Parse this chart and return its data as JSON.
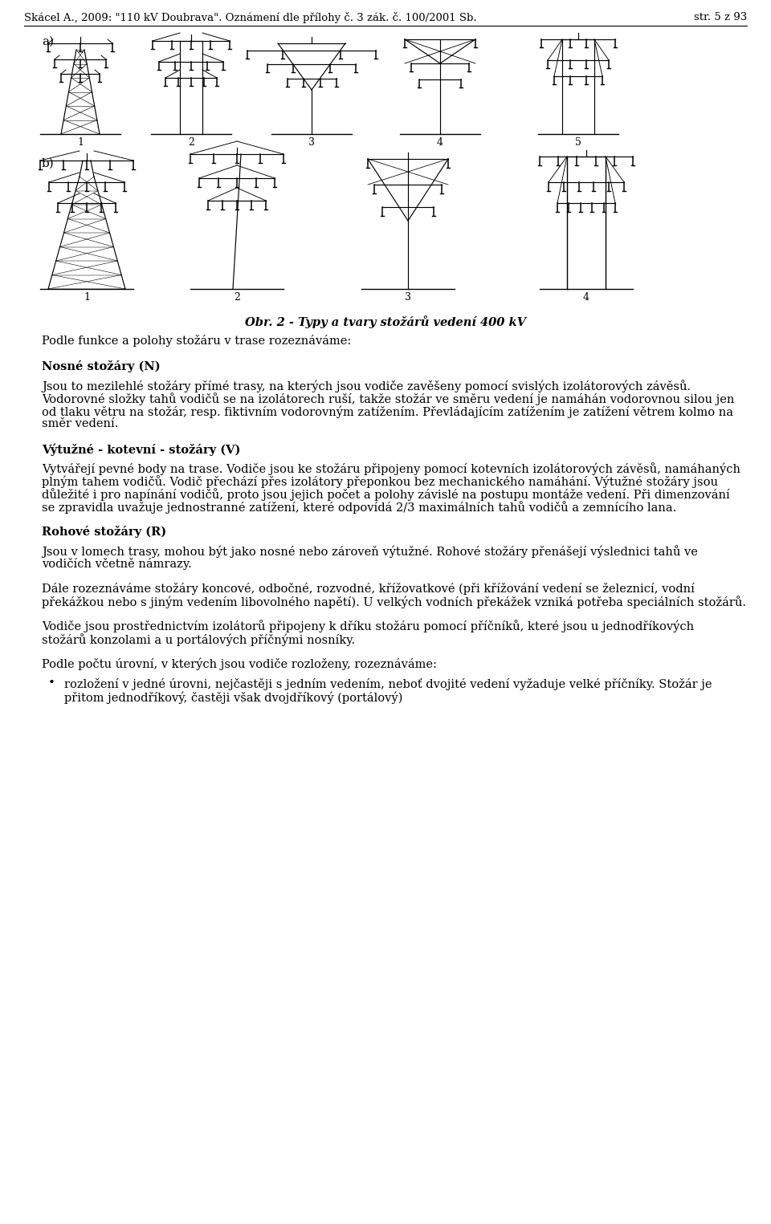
{
  "header_left": "Skácel A., 2009: \"110 kV Doubrava\". Oznámení dle přílohy č. 3 zák. č. 100/2001 Sb.",
  "header_right": "str. 5 z 93",
  "caption": "Obr. 2 - Typy a tvary stožárů vedení 400 kV",
  "intro_text": "Podle funkce a polohy stožáru v trase rozeznáváme:",
  "section1_title": "Nosné stožáry (N)",
  "section1_text": "Jsou to mezilehlé stožáry přímé trasy, na kterých jsou vodiče zavěšeny pomocí svislých izolátorových závěsů. Vodorovné složky tahů vodičů se na izolátorech ruší, takže stožár ve směru vedení je namáhán vodorovnou silou jen od tlaku větru na stožár, resp. fiktivním vodorovným zatížením. Převládajícím zatížením je zatížení větrem kolmo na směr vedení.",
  "section2_title": "Výtužné - kotevní - stožáry (V)",
  "section2_text": "Vytvářejí pevné body na trase. Vodiče jsou ke stožáru připojeny pomocí kotevních izolátorových závěsů, namáhaných plným tahem vodičů. Vodič přechází přes izolátory přeponkou bez mechanického namáhání. Výtužné stožáry jsou důležité i pro napínání vodičů, proto jsou jejich počet a polohy závislé na postupu montáže vedení. Při dimenzování se zpravidla uvažuje jednostranné zatížení, které odpovídá 2/3 maximálních tahů vodičů a zemnícího lana.",
  "section3_title": "Rohové stožáry (R)",
  "section3_text": "Jsou v lomech trasy, mohou být jako nosné nebo zároveň výtužné. Rohové stožáry přenášejí výslednici tahů ve vodičích včetně námrazy.",
  "para4_text": "Dále rozeznáváme stožáry koncové, odbočné, rozvodné, křížovatkové (při křížování vedení se železnicí, vodní překážkou nebo s jiným vedením libovolného napětí). U velkých vodních překážek vzniká potřeba speciálních stožárů.",
  "para5_text": "Vodiče jsou prostřednictvím izolátorů připojeny k dříku stožáru pomocí příčníků, které jsou u jednodříkových stožárů konzolami a u portálových příčnými nosníky.",
  "para6_text": "Podle počtu úrovní, v kterých jsou vodiče rozloženy, rozeznáváme:",
  "bullet1": "rozložení v jedné úrovni, nejčastěji s jedním vedením, neboť dvojité vedení vyžaduje velké příčníky. Stožár je přitom jednodříkový, častěji však dvojdříkový (portálový)",
  "bg_color": "#ffffff",
  "label_a": "a)",
  "label_b": "b)",
  "fig_a_numbers": [
    "1",
    "2",
    "3",
    "4",
    "5"
  ],
  "fig_b_numbers": [
    "1",
    "2",
    "3",
    "4"
  ]
}
